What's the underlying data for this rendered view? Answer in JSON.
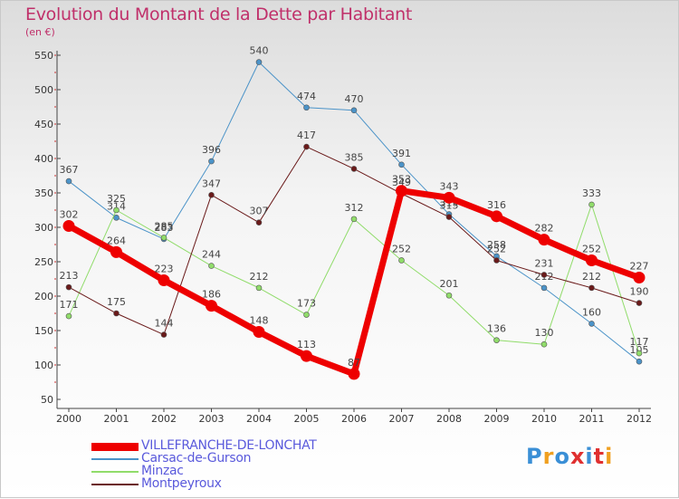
{
  "title": "Evolution du Montant de la Dette par Habitant",
  "subtitle": "(en €)",
  "logo": {
    "text": "Proxiti",
    "colors": [
      "#3a8fd6",
      "#f0a020",
      "#3a8fd6",
      "#e03030",
      "#3a8fd6",
      "#e03030",
      "#f0a020"
    ]
  },
  "chart_data": {
    "type": "line",
    "title": "Evolution du Montant de la Dette par Habitant",
    "ylabel": "(en €)",
    "xlabel": "",
    "x": [
      "2000",
      "2001",
      "2002",
      "2003",
      "2004",
      "2005",
      "2006",
      "2007",
      "2008",
      "2009",
      "2010",
      "2011",
      "2012"
    ],
    "ylim": [
      50,
      550
    ],
    "yticks": [
      "50",
      "100",
      "150",
      "200",
      "250",
      "300",
      "350",
      "400",
      "450",
      "500",
      "550"
    ],
    "grid": false,
    "legend": "bottom-left",
    "series": [
      {
        "name": "Carsac-de-Gurson",
        "color": "#4b93c8",
        "width": 1,
        "values": [
          367,
          314,
          283,
          396,
          540,
          474,
          470,
          391,
          319,
          258,
          212,
          160,
          105
        ]
      },
      {
        "name": "Minzac",
        "color": "#90dc6a",
        "width": 1,
        "values": [
          171,
          325,
          285,
          244,
          212,
          173,
          312,
          252,
          201,
          136,
          130,
          333,
          117
        ]
      },
      {
        "name": "Montpeyroux",
        "color": "#6a1a1a",
        "width": 1,
        "values": [
          213,
          175,
          144,
          347,
          307,
          417,
          385,
          349,
          315,
          252,
          231,
          212,
          190
        ]
      },
      {
        "name": "VILLEFRANCHE-DE-LONCHAT",
        "color": "#ee0000",
        "width": 7,
        "values": [
          302,
          264,
          223,
          186,
          148,
          113,
          87,
          353,
          343,
          316,
          282,
          252,
          227
        ]
      }
    ],
    "legend_order": [
      "VILLEFRANCHE-DE-LONCHAT",
      "Carsac-de-Gurson",
      "Minzac",
      "Montpeyroux"
    ]
  }
}
